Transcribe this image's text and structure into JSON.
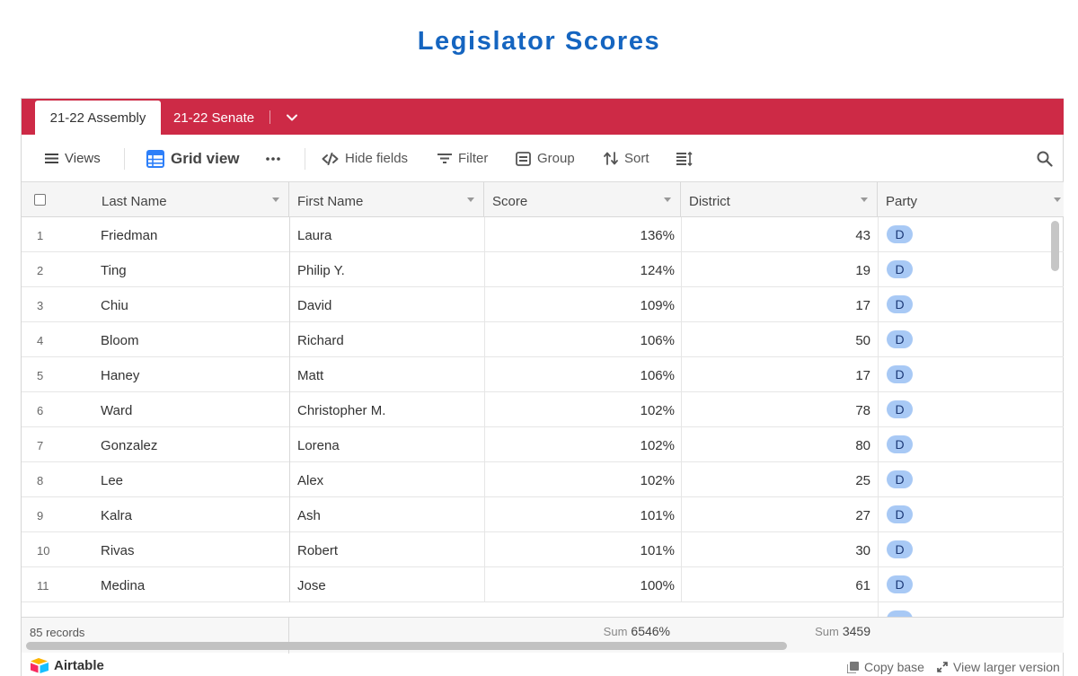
{
  "page": {
    "title": "Legislator Scores"
  },
  "tabs": [
    {
      "label": "21-22 Assembly",
      "active": true
    },
    {
      "label": "21-22 Senate",
      "active": false
    }
  ],
  "toolbar": {
    "views_label": "Views",
    "grid_view_label": "Grid view",
    "hide_fields_label": "Hide fields",
    "filter_label": "Filter",
    "group_label": "Group",
    "sort_label": "Sort"
  },
  "columns": {
    "last_name": "Last Name",
    "first_name": "First Name",
    "score": "Score",
    "district": "District",
    "party": "Party"
  },
  "rows": [
    {
      "num": "1",
      "last": "Friedman",
      "first": "Laura",
      "score": "136%",
      "district": "43",
      "party": "D"
    },
    {
      "num": "2",
      "last": "Ting",
      "first": "Philip Y.",
      "score": "124%",
      "district": "19",
      "party": "D"
    },
    {
      "num": "3",
      "last": "Chiu",
      "first": "David",
      "score": "109%",
      "district": "17",
      "party": "D"
    },
    {
      "num": "4",
      "last": "Bloom",
      "first": "Richard",
      "score": "106%",
      "district": "50",
      "party": "D"
    },
    {
      "num": "5",
      "last": "Haney",
      "first": "Matt",
      "score": "106%",
      "district": "17",
      "party": "D"
    },
    {
      "num": "6",
      "last": "Ward",
      "first": "Christopher M.",
      "score": "102%",
      "district": "78",
      "party": "D"
    },
    {
      "num": "7",
      "last": "Gonzalez",
      "first": "Lorena",
      "score": "102%",
      "district": "80",
      "party": "D"
    },
    {
      "num": "8",
      "last": "Lee",
      "first": "Alex",
      "score": "102%",
      "district": "25",
      "party": "D"
    },
    {
      "num": "9",
      "last": "Kalra",
      "first": "Ash",
      "score": "101%",
      "district": "27",
      "party": "D"
    },
    {
      "num": "10",
      "last": "Rivas",
      "first": "Robert",
      "score": "101%",
      "district": "30",
      "party": "D"
    },
    {
      "num": "11",
      "last": "Medina",
      "first": "Jose",
      "score": "100%",
      "district": "61",
      "party": "D"
    }
  ],
  "footer": {
    "records": "85 records",
    "sum_label": "Sum",
    "score_sum": "6546%",
    "district_sum": "3459"
  },
  "bottom": {
    "brand": "Airtable",
    "copy_base": "Copy base",
    "view_larger": "View larger version"
  },
  "colors": {
    "tabbar": "#cd2a46",
    "title": "#1565c0",
    "party_pill": "#a8c9f5"
  }
}
